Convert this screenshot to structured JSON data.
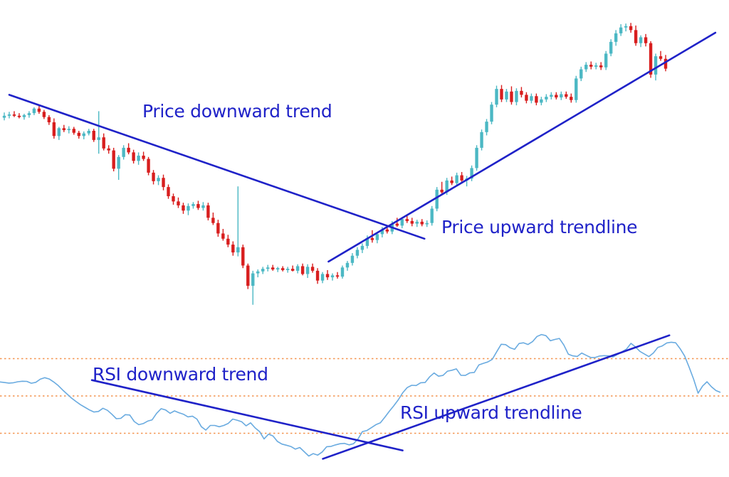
{
  "chart_data": [
    {
      "type": "candlestick",
      "title": "",
      "xlabel": "",
      "ylabel": "",
      "grid": false,
      "colors": {
        "up": "#4cb8c4",
        "down": "#d81e1e",
        "trendline": "#1f22c8",
        "annotation_text": "#1f22c8"
      },
      "ylim": [
        0,
        100
      ],
      "series": [
        {
          "name": "",
          "ohlc": [
            [
              84.0,
              84.8,
              83.6,
              84.3
            ],
            [
              84.3,
              84.9,
              83.9,
              84.5
            ],
            [
              84.5,
              85.0,
              84.1,
              84.3
            ],
            [
              84.3,
              84.7,
              83.9,
              84.1
            ],
            [
              84.1,
              84.6,
              83.7,
              84.4
            ],
            [
              84.4,
              85.0,
              84.0,
              84.7
            ],
            [
              84.7,
              85.6,
              84.4,
              85.4
            ],
            [
              85.4,
              85.8,
              84.6,
              84.9
            ],
            [
              84.9,
              85.2,
              83.8,
              84.1
            ],
            [
              84.1,
              84.4,
              82.9,
              83.3
            ],
            [
              83.3,
              83.9,
              80.8,
              81.2
            ],
            [
              81.2,
              82.6,
              80.6,
              82.4
            ],
            [
              82.4,
              82.9,
              81.8,
              82.1
            ],
            [
              82.1,
              82.7,
              81.6,
              82.3
            ],
            [
              82.3,
              82.6,
              81.4,
              81.7
            ],
            [
              81.7,
              82.0,
              80.8,
              81.2
            ],
            [
              81.2,
              81.9,
              80.7,
              81.6
            ],
            [
              81.6,
              82.3,
              81.3,
              82.0
            ],
            [
              82.0,
              82.3,
              80.3,
              80.6
            ],
            [
              80.6,
              85.0,
              78.5,
              81.0
            ],
            [
              81.0,
              81.6,
              79.0,
              79.3
            ],
            [
              79.3,
              79.8,
              78.5,
              79.0
            ],
            [
              79.0,
              79.4,
              75.8,
              76.2
            ],
            [
              76.2,
              78.3,
              74.5,
              78.0
            ],
            [
              78.0,
              79.8,
              77.6,
              79.4
            ],
            [
              79.4,
              80.1,
              78.4,
              78.7
            ],
            [
              78.7,
              79.1,
              77.0,
              77.4
            ],
            [
              77.4,
              78.7,
              76.8,
              78.2
            ],
            [
              78.2,
              78.8,
              77.4,
              77.7
            ],
            [
              77.7,
              78.0,
              75.2,
              75.6
            ],
            [
              75.6,
              76.0,
              73.8,
              74.3
            ],
            [
              74.3,
              75.2,
              73.7,
              74.8
            ],
            [
              74.8,
              75.3,
              72.9,
              73.4
            ],
            [
              73.4,
              73.8,
              71.6,
              72.0
            ],
            [
              72.0,
              72.4,
              70.7,
              71.2
            ],
            [
              71.2,
              71.8,
              70.2,
              70.6
            ],
            [
              70.6,
              71.0,
              69.3,
              69.8
            ],
            [
              69.8,
              70.9,
              69.1,
              70.5
            ],
            [
              70.5,
              71.1,
              70.1,
              70.8
            ],
            [
              70.8,
              71.3,
              69.9,
              70.2
            ],
            [
              70.2,
              71.1,
              69.8,
              70.6
            ],
            [
              70.6,
              71.0,
              68.3,
              68.7
            ],
            [
              68.7,
              69.5,
              67.6,
              67.9
            ],
            [
              67.9,
              68.4,
              65.8,
              66.3
            ],
            [
              66.3,
              67.0,
              65.2,
              65.5
            ],
            [
              65.5,
              66.1,
              64.2,
              64.6
            ],
            [
              64.6,
              65.1,
              62.9,
              63.4
            ],
            [
              63.4,
              73.5,
              62.8,
              64.2
            ],
            [
              64.2,
              64.6,
              61.0,
              61.4
            ],
            [
              61.4,
              61.7,
              57.8,
              58.3
            ],
            [
              58.3,
              60.6,
              55.4,
              60.2
            ],
            [
              60.2,
              60.8,
              59.6,
              60.5
            ],
            [
              60.5,
              61.2,
              60.1,
              60.9
            ],
            [
              60.9,
              61.5,
              60.5,
              61.1
            ],
            [
              61.1,
              61.5,
              60.6,
              60.8
            ],
            [
              60.8,
              61.2,
              60.4,
              61.0
            ],
            [
              61.0,
              61.3,
              60.5,
              60.7
            ],
            [
              60.7,
              61.2,
              60.3,
              60.9
            ],
            [
              60.9,
              61.4,
              60.5,
              60.6
            ],
            [
              60.6,
              61.6,
              60.2,
              61.3
            ],
            [
              61.3,
              61.7,
              59.9,
              60.1
            ],
            [
              60.1,
              61.6,
              59.5,
              61.2
            ],
            [
              61.2,
              61.7,
              60.3,
              60.6
            ],
            [
              60.6,
              61.0,
              58.6,
              59.1
            ],
            [
              59.1,
              60.4,
              58.7,
              60.1
            ],
            [
              60.1,
              60.7,
              59.2,
              59.6
            ],
            [
              59.6,
              60.2,
              59.1,
              59.9
            ],
            [
              59.9,
              60.4,
              59.4,
              59.7
            ],
            [
              59.7,
              61.4,
              59.4,
              61.1
            ],
            [
              61.1,
              62.1,
              60.6,
              61.8
            ],
            [
              61.8,
              63.3,
              61.4,
              62.9
            ],
            [
              62.9,
              64.2,
              62.5,
              63.8
            ],
            [
              63.8,
              64.8,
              63.3,
              64.4
            ],
            [
              64.4,
              66.0,
              64.0,
              65.6
            ],
            [
              65.6,
              66.8,
              64.9,
              65.3
            ],
            [
              65.3,
              66.5,
              64.8,
              66.2
            ],
            [
              66.2,
              67.3,
              65.7,
              66.9
            ],
            [
              66.9,
              67.5,
              66.3,
              66.6
            ],
            [
              66.6,
              68.2,
              66.2,
              67.8
            ],
            [
              67.8,
              68.7,
              67.3,
              67.5
            ],
            [
              67.5,
              68.8,
              67.1,
              68.5
            ],
            [
              68.5,
              69.2,
              67.9,
              68.2
            ],
            [
              68.2,
              68.7,
              67.4,
              67.8
            ],
            [
              67.8,
              68.4,
              67.3,
              68.1
            ],
            [
              68.1,
              68.5,
              67.4,
              67.7
            ],
            [
              67.7,
              68.3,
              67.3,
              67.9
            ],
            [
              67.9,
              70.5,
              67.5,
              70.1
            ],
            [
              70.1,
              73.4,
              69.7,
              73.0
            ],
            [
              73.0,
              74.2,
              72.4,
              72.6
            ],
            [
              72.6,
              74.8,
              72.2,
              74.4
            ],
            [
              74.4,
              75.0,
              73.7,
              74.0
            ],
            [
              74.0,
              75.6,
              73.6,
              75.2
            ],
            [
              75.2,
              75.7,
              74.1,
              74.4
            ],
            [
              74.4,
              75.1,
              73.5,
              74.7
            ],
            [
              74.7,
              76.7,
              74.3,
              76.3
            ],
            [
              76.3,
              79.8,
              75.9,
              79.4
            ],
            [
              79.4,
              82.2,
              79.0,
              81.8
            ],
            [
              81.8,
              83.8,
              81.3,
              83.4
            ],
            [
              83.4,
              86.4,
              83.0,
              86.0
            ],
            [
              86.0,
              88.9,
              85.6,
              88.4
            ],
            [
              88.4,
              89.0,
              86.4,
              86.8
            ],
            [
              86.8,
              88.4,
              86.4,
              88.0
            ],
            [
              88.0,
              88.8,
              86.0,
              86.4
            ],
            [
              86.4,
              88.5,
              85.9,
              88.1
            ],
            [
              88.1,
              88.7,
              87.1,
              87.5
            ],
            [
              87.5,
              87.9,
              86.2,
              86.6
            ],
            [
              86.6,
              87.7,
              86.2,
              87.3
            ],
            [
              87.3,
              87.7,
              85.9,
              86.3
            ],
            [
              86.3,
              87.2,
              85.9,
              86.8
            ],
            [
              86.8,
              87.6,
              86.4,
              87.2
            ],
            [
              87.2,
              87.9,
              86.8,
              87.5
            ],
            [
              87.5,
              87.9,
              86.8,
              87.1
            ],
            [
              87.1,
              88.0,
              86.7,
              87.6
            ],
            [
              87.6,
              88.0,
              86.9,
              87.2
            ],
            [
              87.2,
              87.7,
              86.3,
              86.7
            ],
            [
              86.7,
              90.4,
              86.3,
              90.0
            ],
            [
              90.0,
              91.8,
              89.6,
              91.4
            ],
            [
              91.4,
              92.5,
              91.0,
              92.1
            ],
            [
              92.1,
              92.6,
              91.4,
              91.8
            ],
            [
              91.8,
              92.4,
              91.4,
              92.0
            ],
            [
              92.0,
              92.5,
              91.3,
              91.7
            ],
            [
              91.7,
              94.2,
              91.3,
              93.8
            ],
            [
              93.8,
              96.0,
              93.4,
              95.6
            ],
            [
              95.6,
              97.4,
              95.0,
              96.9
            ],
            [
              96.9,
              98.3,
              96.5,
              97.8
            ],
            [
              97.8,
              98.4,
              97.2,
              98.0
            ],
            [
              98.0,
              98.5,
              97.0,
              97.4
            ],
            [
              97.4,
              98.1,
              95.0,
              95.4
            ],
            [
              95.4,
              96.6,
              94.8,
              96.3
            ],
            [
              96.3,
              96.8,
              94.9,
              95.4
            ],
            [
              95.4,
              95.7,
              90.1,
              90.6
            ],
            [
              90.6,
              93.8,
              89.7,
              93.4
            ],
            [
              93.4,
              94.2,
              92.7,
              93.0
            ],
            [
              93.0,
              93.6,
              91.1,
              91.5
            ]
          ]
        }
      ],
      "trendlines": [
        {
          "name": "Price downward trend",
          "points": [
            [
              1.0,
              87.5
            ],
            [
              84.5,
              65.5
            ]
          ]
        },
        {
          "name": "Price upward trendline",
          "points": [
            [
              65.2,
              62.0
            ],
            [
              143.0,
              97.0
            ]
          ]
        }
      ],
      "annotations": [
        "Price downward trend",
        "Price upward trendline"
      ]
    },
    {
      "type": "line",
      "title": "",
      "xlabel": "",
      "ylabel": "",
      "grid": false,
      "colors": {
        "line": "#6aabe0",
        "levels": "#f4944f",
        "trendline": "#1f22c8",
        "annotation_text": "#1f22c8"
      },
      "ylim": [
        0,
        100
      ],
      "levels": [
        70,
        50,
        30
      ],
      "series": [
        {
          "name": "",
          "values": [
            57.5,
            57.2,
            56.9,
            57.1,
            57.6,
            57.9,
            57.8,
            56.8,
            57.3,
            59.0,
            59.8,
            59.1,
            57.5,
            55.6,
            53.2,
            51.0,
            48.8,
            47.0,
            45.3,
            43.9,
            42.5,
            41.4,
            41.7,
            43.4,
            42.3,
            40.2,
            37.8,
            38.0,
            40.0,
            39.8,
            36.3,
            34.6,
            35.2,
            36.5,
            37.2,
            40.7,
            43.2,
            42.5,
            40.7,
            42.0,
            41.0,
            40.2,
            38.8,
            39.2,
            37.6,
            33.5,
            31.7,
            34.2,
            34.2,
            33.5,
            34.2,
            35.3,
            37.6,
            37.0,
            36.2,
            34.0,
            35.6,
            32.9,
            30.9,
            27.0,
            29.5,
            28.6,
            25.6,
            24.2,
            23.6,
            22.9,
            21.5,
            22.4,
            20.1,
            17.8,
            19.1,
            18.3,
            20.0,
            22.8,
            23.0,
            23.8,
            24.4,
            24.6,
            23.8,
            24.4,
            27.0,
            30.9,
            31.5,
            33.0,
            34.6,
            35.6,
            38.6,
            41.8,
            44.7,
            47.9,
            51.7,
            54.5,
            55.7,
            55.6,
            57.1,
            57.2,
            60.2,
            62.3,
            60.6,
            61.0,
            63.3,
            63.8,
            64.5,
            61.1,
            61.0,
            62.4,
            62.6,
            66.6,
            67.5,
            68.2,
            69.6,
            73.7,
            77.7,
            77.5,
            75.8,
            75.0,
            78.1,
            78.5,
            77.6,
            79.1,
            81.9,
            82.9,
            82.3,
            79.6,
            80.3,
            80.8,
            77.3,
            72.4,
            71.5,
            71.2,
            73.0,
            71.8,
            70.6,
            70.6,
            71.4,
            71.6,
            71.5,
            70.9,
            72.3,
            73.7,
            75.1,
            78.2,
            76.3,
            73.9,
            72.5,
            71.1,
            73.0,
            76.0,
            76.8,
            78.4,
            78.8,
            78.5,
            75.3,
            71.4,
            65.4,
            59.0,
            51.5,
            55.3,
            57.6,
            54.9,
            52.9,
            51.9
          ]
        }
      ],
      "trendlines": [
        {
          "name": "RSI downward trend",
          "points": [
            [
              0.18,
              58.5
            ],
            [
              0.745,
              20.8
            ]
          ]
        },
        {
          "name": "RSI upward trendline",
          "points": [
            [
              0.6,
              16.3
            ],
            [
              1.23,
              82.5
            ]
          ]
        }
      ],
      "annotations": [
        "RSI downward trend",
        "RSI upward trendline"
      ]
    }
  ],
  "labels": {
    "price_down": "Price downward trend",
    "price_up": "Price upward trendline",
    "rsi_down": "RSI downward trend",
    "rsi_up": "RSI upward trendline"
  }
}
